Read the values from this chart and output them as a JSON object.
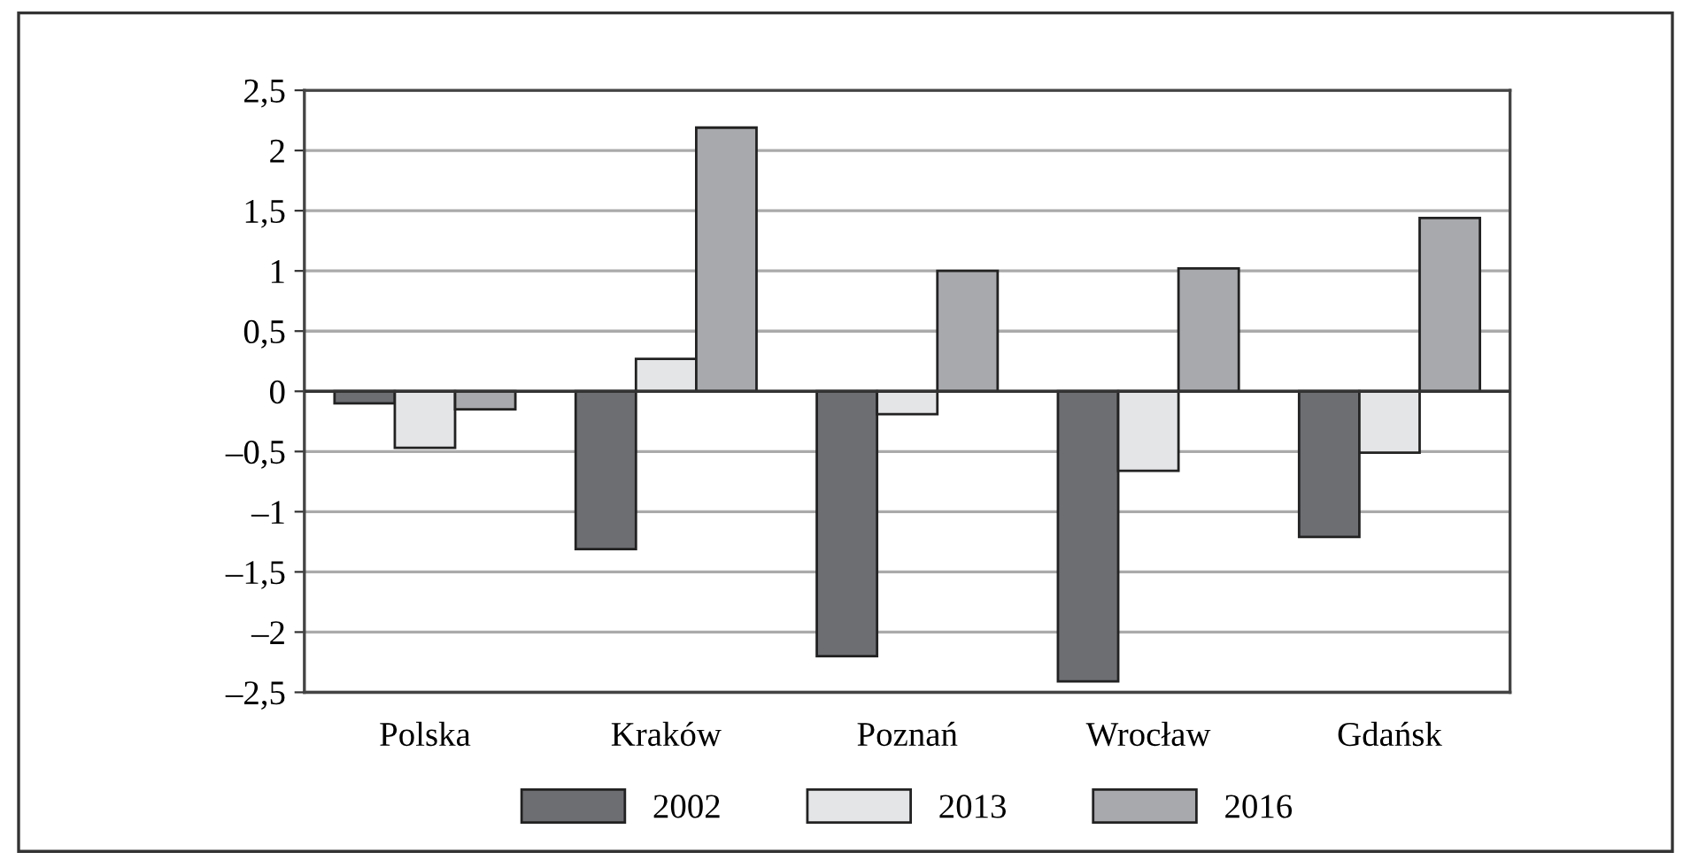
{
  "chart_data": {
    "type": "bar",
    "categories": [
      "Polska",
      "Kraków",
      "Poznań",
      "Wrocław",
      "Gdańsk"
    ],
    "series": [
      {
        "name": "2002",
        "color": "#6d6e72",
        "values": [
          -0.1,
          -1.31,
          -2.2,
          -2.41,
          -1.21
        ]
      },
      {
        "name": "2013",
        "color": "#e4e5e7",
        "values": [
          -0.47,
          0.27,
          -0.19,
          -0.66,
          -0.51
        ]
      },
      {
        "name": "2016",
        "color": "#a8a9ac",
        "values": [
          -0.15,
          2.19,
          1.0,
          1.02,
          1.44
        ]
      }
    ],
    "ylim": [
      -2.5,
      2.5
    ],
    "yticks": [
      {
        "value": -2.5,
        "label": "–2,5"
      },
      {
        "value": -2,
        "label": "–2"
      },
      {
        "value": -1.5,
        "label": "–1,5"
      },
      {
        "value": -1,
        "label": "–1"
      },
      {
        "value": -0.5,
        "label": "–0,5"
      },
      {
        "value": 0,
        "label": "0"
      },
      {
        "value": 0.5,
        "label": "0,5"
      },
      {
        "value": 1,
        "label": "1"
      },
      {
        "value": 1.5,
        "label": "1,5"
      },
      {
        "value": 2,
        "label": "2"
      },
      {
        "value": 2.5,
        "label": "2,5"
      }
    ],
    "grid": "y",
    "legend": "bottom"
  }
}
